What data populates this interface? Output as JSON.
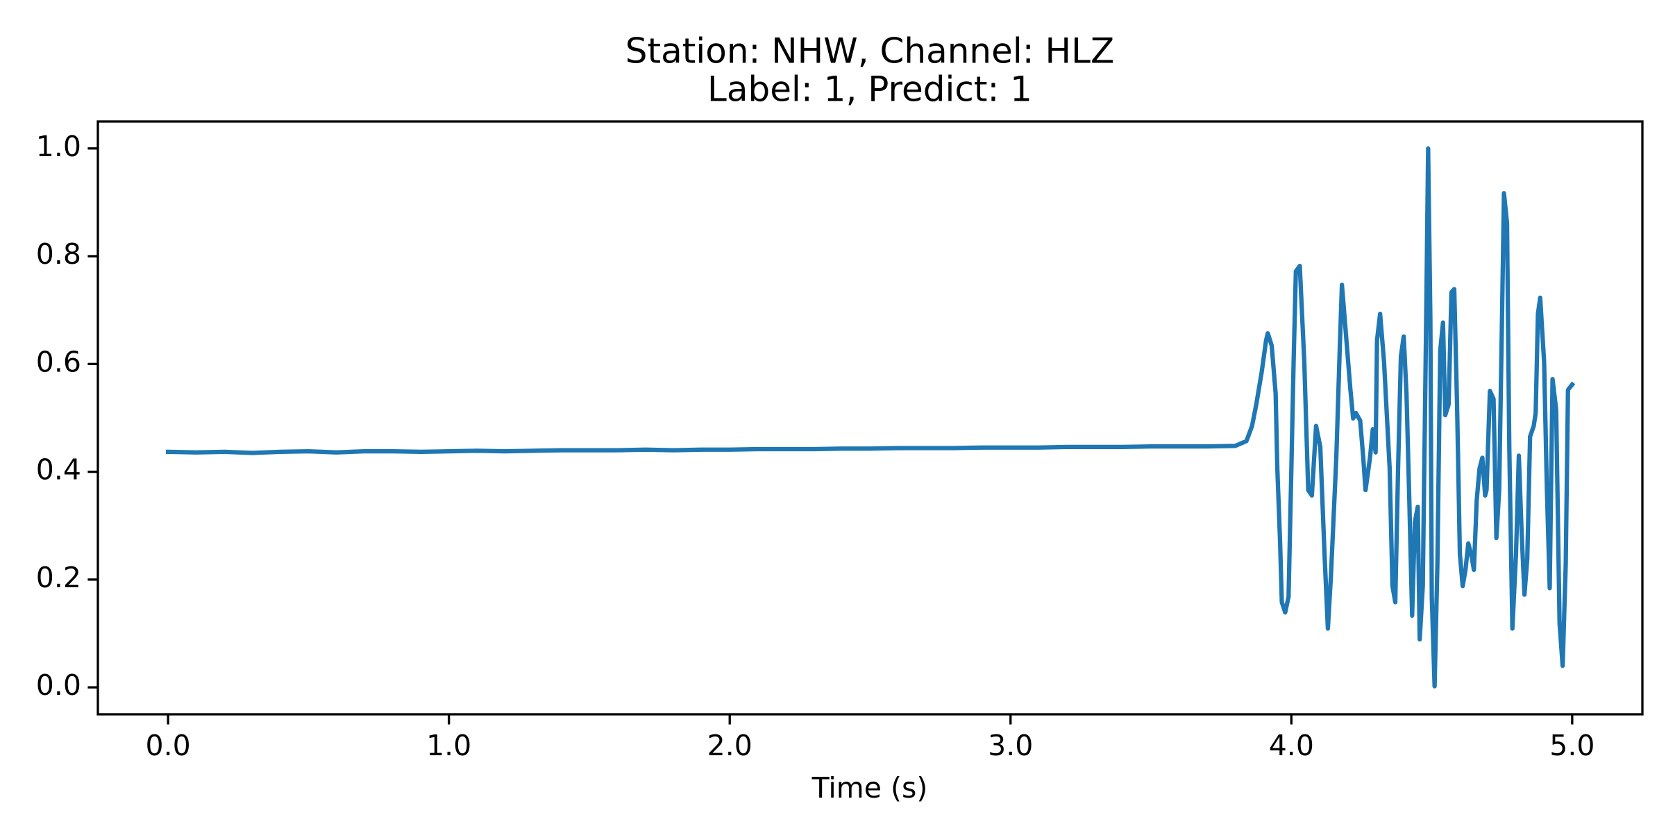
{
  "chart_data": {
    "type": "line",
    "title": "Station: NHW, Channel: HLZ",
    "subtitle": "Label: 1, Predict: 1",
    "x_label": "Time (s)",
    "color": "#1f77b4",
    "x": [
      0,
      0.1,
      0.2,
      0.3,
      0.4,
      0.5,
      0.6,
      0.7,
      0.8,
      0.9,
      1.0,
      1.1,
      1.2,
      1.3,
      1.4,
      1.5,
      1.6,
      1.7,
      1.8,
      1.9,
      2.0,
      2.1,
      2.2,
      2.3,
      2.4,
      2.5,
      2.6,
      2.7,
      2.8,
      2.9,
      3.0,
      3.1,
      3.2,
      3.3,
      3.4,
      3.5,
      3.6,
      3.7,
      3.8,
      3.84,
      3.86,
      3.875,
      3.894,
      3.91,
      3.916,
      3.93,
      3.944,
      3.95,
      3.96,
      3.966,
      3.978,
      3.99,
      4.0,
      4.008,
      4.016,
      4.03,
      4.046,
      4.06,
      4.073,
      4.088,
      4.103,
      4.118,
      4.13,
      4.141,
      4.16,
      4.172,
      4.18,
      4.19,
      4.21,
      4.22,
      4.23,
      4.245,
      4.256,
      4.264,
      4.28,
      4.29,
      4.3,
      4.305,
      4.316,
      4.33,
      4.35,
      4.36,
      4.37,
      4.38,
      4.39,
      4.4,
      4.41,
      4.42,
      4.43,
      4.44,
      4.45,
      4.457,
      4.468,
      4.48,
      4.487,
      4.495,
      4.5,
      4.51,
      4.52,
      4.53,
      4.54,
      4.548,
      4.56,
      4.57,
      4.58,
      4.59,
      4.6,
      4.61,
      4.62,
      4.63,
      4.64,
      4.65,
      4.66,
      4.67,
      4.68,
      4.69,
      4.695,
      4.707,
      4.72,
      4.73,
      4.74,
      4.75,
      4.757,
      4.768,
      4.776,
      4.787,
      4.8,
      4.81,
      4.82,
      4.83,
      4.84,
      4.85,
      4.863,
      4.87,
      4.878,
      4.886,
      4.9,
      4.91,
      4.92,
      4.93,
      4.943,
      4.955,
      4.966,
      4.977,
      4.985,
      5.0
    ],
    "values": [
      0.437,
      0.436,
      0.437,
      0.435,
      0.437,
      0.438,
      0.436,
      0.438,
      0.438,
      0.437,
      0.438,
      0.439,
      0.438,
      0.439,
      0.44,
      0.44,
      0.44,
      0.441,
      0.44,
      0.441,
      0.441,
      0.442,
      0.442,
      0.442,
      0.443,
      0.443,
      0.444,
      0.444,
      0.444,
      0.445,
      0.445,
      0.445,
      0.446,
      0.446,
      0.446,
      0.447,
      0.447,
      0.447,
      0.448,
      0.457,
      0.485,
      0.525,
      0.584,
      0.644,
      0.657,
      0.634,
      0.545,
      0.406,
      0.267,
      0.158,
      0.139,
      0.168,
      0.406,
      0.604,
      0.772,
      0.782,
      0.604,
      0.366,
      0.356,
      0.485,
      0.446,
      0.248,
      0.109,
      0.208,
      0.426,
      0.624,
      0.747,
      0.683,
      0.554,
      0.499,
      0.509,
      0.495,
      0.426,
      0.366,
      0.426,
      0.479,
      0.436,
      0.644,
      0.693,
      0.604,
      0.406,
      0.188,
      0.158,
      0.406,
      0.614,
      0.651,
      0.545,
      0.347,
      0.133,
      0.307,
      0.335,
      0.089,
      0.188,
      0.683,
      1.0,
      0.683,
      0.168,
      0.002,
      0.228,
      0.624,
      0.677,
      0.505,
      0.525,
      0.733,
      0.739,
      0.525,
      0.248,
      0.188,
      0.218,
      0.267,
      0.248,
      0.218,
      0.347,
      0.406,
      0.426,
      0.356,
      0.366,
      0.55,
      0.535,
      0.277,
      0.366,
      0.683,
      0.917,
      0.861,
      0.446,
      0.109,
      0.248,
      0.43,
      0.287,
      0.172,
      0.238,
      0.465,
      0.485,
      0.509,
      0.693,
      0.723,
      0.604,
      0.366,
      0.184,
      0.572,
      0.515,
      0.119,
      0.04,
      0.228,
      0.552,
      0.562
    ],
    "xlim": [
      -0.25,
      5.25
    ],
    "ylim": [
      -0.05,
      1.05
    ],
    "xticks": [
      {
        "value": 0,
        "label": "0.0"
      },
      {
        "value": 1,
        "label": "1.0"
      },
      {
        "value": 2,
        "label": "2.0"
      },
      {
        "value": 3,
        "label": "3.0"
      },
      {
        "value": 4,
        "label": "4.0"
      },
      {
        "value": 5,
        "label": "5.0"
      }
    ],
    "yticks": [
      {
        "value": 0,
        "label": "0.0"
      },
      0.2,
      0.4,
      0.6,
      0.8,
      {
        "value": 1,
        "label": "1.0"
      }
    ]
  }
}
